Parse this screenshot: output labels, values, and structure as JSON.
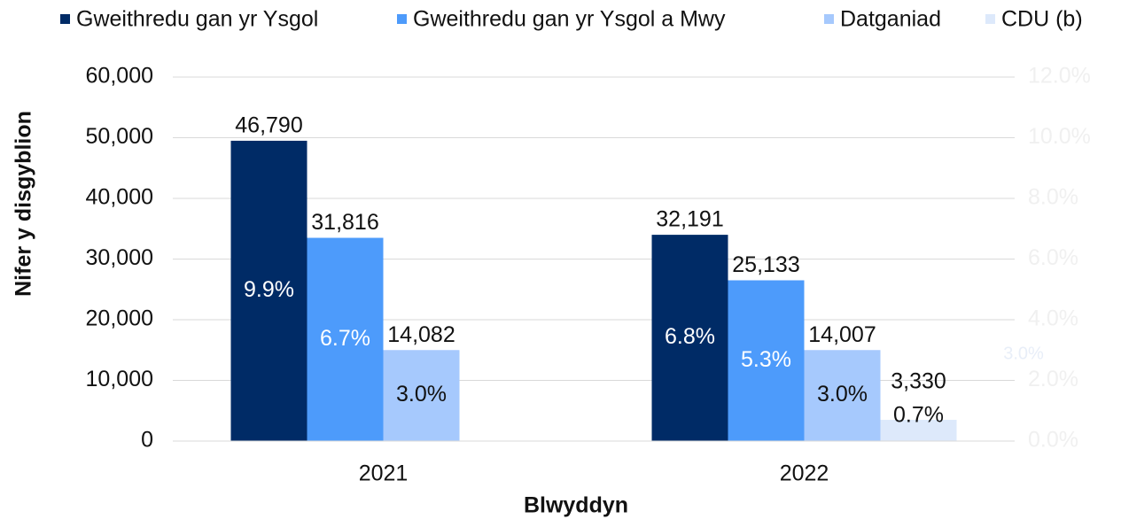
{
  "chart_data": {
    "type": "bar",
    "categories": [
      "2021",
      "2022"
    ],
    "xlabel": "Blwyddyn",
    "ylabel": "Nifer y disgyblion",
    "series": [
      {
        "name": "Gweithredu gan yr Ysgol",
        "color": "#002b66",
        "axis": "y2",
        "values": [
          9.9,
          6.8
        ],
        "value_labels": [
          "9.9%",
          "6.8%"
        ],
        "count_labels": [
          "46,790",
          "32,191"
        ]
      },
      {
        "name": "Gweithredu gan yr Ysgol a Mwy",
        "color": "#4d9bfb",
        "axis": "y2",
        "values": [
          6.7,
          5.3
        ],
        "value_labels": [
          "6.7%",
          "5.3%"
        ],
        "count_labels": [
          "31,816",
          "25,133"
        ]
      },
      {
        "name": "Datganiad",
        "color": "#a6c9fd",
        "axis": "y2",
        "values": [
          3.0,
          3.0
        ],
        "value_labels": [
          "3.0%",
          "3.0%"
        ],
        "count_labels": [
          "14,082",
          "14,007"
        ]
      },
      {
        "name": "CDU (b)",
        "color": "#dde9fb",
        "axis": "y2",
        "values": [
          null,
          0.7
        ],
        "value_labels": [
          null,
          "0.7%"
        ],
        "count_labels": [
          null,
          "3,330"
        ]
      }
    ],
    "annotation": "3.0%",
    "ylim": [
      0,
      60000
    ],
    "yticks": [
      0,
      {
        "value": 10000,
        "label": "10,000"
      },
      {
        "value": 20000,
        "label": "20,000"
      },
      {
        "value": 30000,
        "label": "30,000"
      },
      {
        "value": 40000,
        "label": "40,000"
      },
      {
        "value": 50000,
        "label": "50,000"
      },
      {
        "value": 60000,
        "label": "60,000"
      }
    ],
    "y2lim": [
      0,
      12
    ],
    "y2ticks": [
      {
        "value": 0,
        "label": "0.0%"
      },
      {
        "value": 2,
        "label": "2.0%"
      },
      {
        "value": 4,
        "label": "4.0%"
      },
      {
        "value": 6,
        "label": "6.0%"
      },
      {
        "value": 8,
        "label": "8.0%"
      },
      {
        "value": 10,
        "label": "10.0%"
      },
      {
        "value": 12,
        "label": "12.0%"
      }
    ],
    "grid": true
  }
}
